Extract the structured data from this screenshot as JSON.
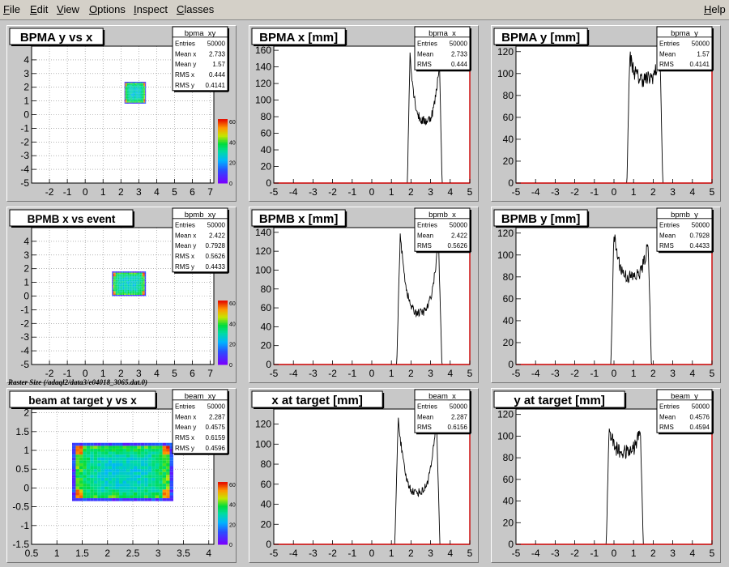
{
  "menubar": {
    "items": [
      "File",
      "Edit",
      "View",
      "Options",
      "Inspect",
      "Classes"
    ],
    "help": "Help"
  },
  "caption": "Raster Size (/adaql2/data3/e04018_3065.dat.0)",
  "chart_data": [
    {
      "id": "bpma_xy",
      "type": "heatmap",
      "title": "BPMA y vs x",
      "stats": {
        "name": "bpma_xy",
        "rows": [
          [
            "Entries",
            "50000"
          ],
          [
            "Mean x",
            "2.733"
          ],
          [
            "Mean y",
            "1.57"
          ],
          [
            "RMS x",
            "0.444"
          ],
          [
            "RMS y",
            "0.4141"
          ]
        ]
      },
      "xlim": [
        -3,
        7.2
      ],
      "ylim": [
        -5,
        5
      ],
      "xticks": [
        -2,
        -1,
        0,
        1,
        2,
        3,
        4,
        5,
        6,
        7
      ],
      "yticks": [
        -5,
        -4,
        -3,
        -2,
        -1,
        0,
        1,
        2,
        3,
        4
      ],
      "spot": {
        "x": [
          2.2,
          3.4
        ],
        "y": [
          0.8,
          2.4
        ]
      },
      "zticks": [
        0,
        20,
        40,
        60
      ]
    },
    {
      "id": "bpma_x",
      "type": "histogram",
      "title": "BPMA x [mm]",
      "stats": {
        "name": "bpma_x",
        "rows": [
          [
            "Entries",
            "50000"
          ],
          [
            "Mean",
            "2.733"
          ],
          [
            "RMS",
            "0.444"
          ]
        ]
      },
      "xlim": [
        -5,
        5
      ],
      "ylim": [
        0,
        165
      ],
      "xticks": [
        -5,
        -4,
        -3,
        -2,
        -1,
        0,
        1,
        2,
        3,
        4,
        5
      ],
      "yticks": [
        0,
        20,
        40,
        60,
        80,
        100,
        120,
        140,
        160
      ],
      "shape": {
        "lo": 1.95,
        "hi": 3.45,
        "peak_lo": 157,
        "peak_hi": 148,
        "valley": 75
      }
    },
    {
      "id": "bpma_y",
      "type": "histogram",
      "title": "BPMA y [mm]",
      "stats": {
        "name": "bpma_y",
        "rows": [
          [
            "Entries",
            "50000"
          ],
          [
            "Mean",
            "1.57"
          ],
          [
            "RMS",
            "0.4141"
          ]
        ]
      },
      "xlim": [
        -5,
        5
      ],
      "ylim": [
        0,
        125
      ],
      "xticks": [
        -5,
        -4,
        -3,
        -2,
        -1,
        0,
        1,
        2,
        3,
        4,
        5
      ],
      "yticks": [
        0,
        20,
        40,
        60,
        80,
        100,
        120
      ],
      "shape": {
        "lo": 0.8,
        "hi": 2.35,
        "peak_lo": 117,
        "peak_hi": 115,
        "valley": 95
      }
    },
    {
      "id": "bpmb_xy",
      "type": "heatmap",
      "title": "BPMB x vs event",
      "stats": {
        "name": "bpmb_xy",
        "rows": [
          [
            "Entries",
            "50000"
          ],
          [
            "Mean x",
            "2.422"
          ],
          [
            "Mean y",
            "0.7928"
          ],
          [
            "RMS x",
            "0.5626"
          ],
          [
            "RMS y",
            "0.4433"
          ]
        ]
      },
      "xlim": [
        -3,
        7.2
      ],
      "ylim": [
        -5,
        5
      ],
      "xticks": [
        -2,
        -1,
        0,
        1,
        2,
        3,
        4,
        5,
        6,
        7
      ],
      "yticks": [
        -5,
        -4,
        -3,
        -2,
        -1,
        0,
        1,
        2,
        3,
        4
      ],
      "spot": {
        "x": [
          1.5,
          3.4
        ],
        "y": [
          0,
          1.8
        ]
      },
      "zticks": [
        0,
        20,
        40,
        60
      ]
    },
    {
      "id": "bpmb_x",
      "type": "histogram",
      "title": "BPMB x [mm]",
      "stats": {
        "name": "bpmb_x",
        "rows": [
          [
            "Entries",
            "50000"
          ],
          [
            "Mean",
            "2.422"
          ],
          [
            "RMS",
            "0.5626"
          ]
        ]
      },
      "xlim": [
        -5,
        5
      ],
      "ylim": [
        0,
        145
      ],
      "xticks": [
        -5,
        -4,
        -3,
        -2,
        -1,
        0,
        1,
        2,
        3,
        4,
        5
      ],
      "yticks": [
        0,
        20,
        40,
        60,
        80,
        100,
        120,
        140
      ],
      "shape": {
        "lo": 1.45,
        "hi": 3.4,
        "peak_lo": 139,
        "peak_hi": 133,
        "valley": 55
      }
    },
    {
      "id": "bpmb_y",
      "type": "histogram",
      "title": "BPMB y [mm]",
      "stats": {
        "name": "bpmb_y",
        "rows": [
          [
            "Entries",
            "50000"
          ],
          [
            "Mean",
            "0.7928"
          ],
          [
            "RMS",
            "0.4433"
          ]
        ]
      },
      "xlim": [
        -5,
        5
      ],
      "ylim": [
        0,
        125
      ],
      "xticks": [
        -5,
        -4,
        -3,
        -2,
        -1,
        0,
        1,
        2,
        3,
        4,
        5
      ],
      "yticks": [
        0,
        20,
        40,
        60,
        80,
        100,
        120
      ],
      "shape": {
        "lo": 0.0,
        "hi": 1.75,
        "peak_lo": 119,
        "peak_hi": 112,
        "valley": 80
      }
    },
    {
      "id": "beam_xy",
      "type": "heatmap",
      "title": "beam at target y vs x",
      "stats": {
        "name": "beam_xy",
        "rows": [
          [
            "Entries",
            "50000"
          ],
          [
            "Mean x",
            "2.287"
          ],
          [
            "Mean y",
            "0.4575"
          ],
          [
            "RMS x",
            "0.6159"
          ],
          [
            "RMS y",
            "0.4596"
          ]
        ]
      },
      "xlim": [
        0.5,
        4.1
      ],
      "ylim": [
        -1.5,
        2.1
      ],
      "xticks": [
        0.5,
        1,
        1.5,
        2,
        2.5,
        3,
        3.5,
        4
      ],
      "yticks": [
        -1.5,
        -1,
        -0.5,
        0,
        0.5,
        1,
        1.5,
        2
      ],
      "spot": {
        "x": [
          1.3,
          3.3
        ],
        "y": [
          -0.35,
          1.2
        ]
      },
      "zticks": [
        0,
        20,
        40,
        60
      ]
    },
    {
      "id": "beam_x",
      "type": "histogram",
      "title": "x at target [mm]",
      "stats": {
        "name": "beam_x",
        "rows": [
          [
            "Entries",
            "50000"
          ],
          [
            "Mean",
            "2.287"
          ],
          [
            "RMS",
            "0.6156"
          ]
        ]
      },
      "xlim": [
        -5,
        5
      ],
      "ylim": [
        0,
        135
      ],
      "xticks": [
        -5,
        -4,
        -3,
        -2,
        -1,
        0,
        1,
        2,
        3,
        4,
        5
      ],
      "yticks": [
        0,
        20,
        40,
        60,
        80,
        100,
        120
      ],
      "shape": {
        "lo": 1.35,
        "hi": 3.3,
        "peak_lo": 128,
        "peak_hi": 125,
        "valley": 52
      }
    },
    {
      "id": "beam_y",
      "type": "histogram",
      "title": "y at target [mm]",
      "stats": {
        "name": "beam_y",
        "rows": [
          [
            "Entries",
            "50000"
          ],
          [
            "Mean",
            "0.4576"
          ],
          [
            "RMS",
            "0.4594"
          ]
        ]
      },
      "xlim": [
        -5,
        5
      ],
      "ylim": [
        0,
        125
      ],
      "xticks": [
        -5,
        -4,
        -3,
        -2,
        -1,
        0,
        1,
        2,
        3,
        4,
        5
      ],
      "yticks": [
        0,
        20,
        40,
        60,
        80,
        100,
        120
      ],
      "shape": {
        "lo": -0.25,
        "hi": 1.35,
        "peak_lo": 108,
        "peak_hi": 107,
        "valley": 85
      }
    }
  ]
}
